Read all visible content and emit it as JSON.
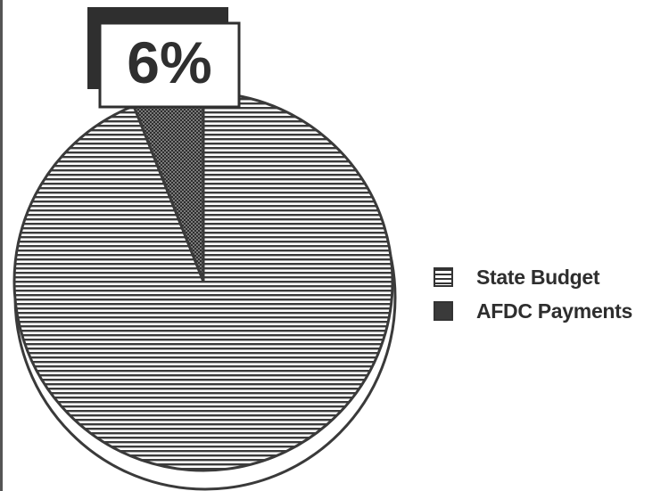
{
  "chart_data": {
    "type": "pie",
    "slices": [
      {
        "label": "State Budget",
        "value": 94,
        "pattern": "horizontal-lines",
        "color": "#333333"
      },
      {
        "label": "AFDC Payments",
        "value": 6,
        "pattern": "crosshatch",
        "color": "#3a3a3a"
      }
    ],
    "annotation": "6%",
    "legend": {
      "position": "right",
      "entries": [
        "State Budget",
        "AFDC Payments"
      ]
    },
    "colors": {
      "ink": "#333333",
      "background": "#ffffff"
    }
  }
}
